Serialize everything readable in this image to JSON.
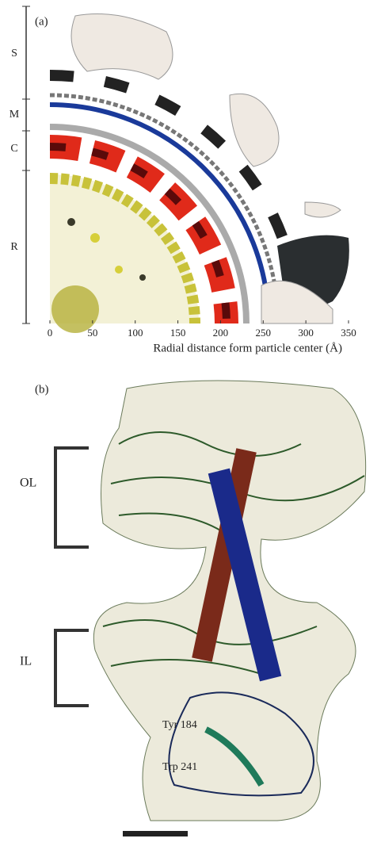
{
  "panel_a": {
    "label": "(a)",
    "regions": [
      "S",
      "M",
      "C",
      "R"
    ],
    "x_axis": {
      "ticks": [
        0,
        50,
        100,
        150,
        200,
        250,
        300,
        350
      ],
      "label": "Radial distance form particle center (Å)"
    }
  },
  "panel_b": {
    "label": "(b)",
    "brackets": [
      "OL",
      "IL"
    ],
    "residues": [
      "Tyr 184",
      "Trp 241"
    ]
  }
}
